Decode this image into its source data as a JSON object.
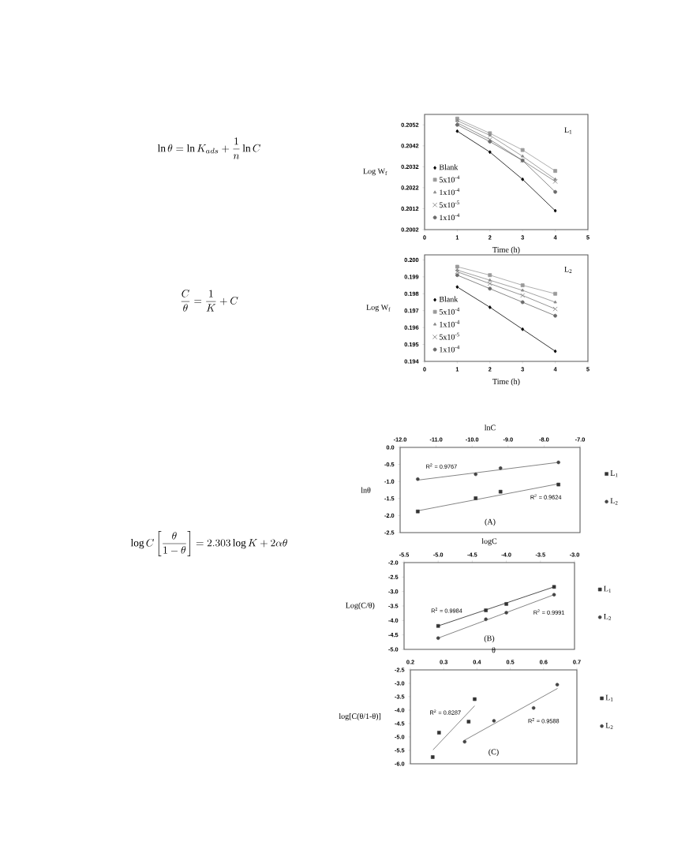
{
  "chart_data": [
    {
      "type": "other",
      "annotations": [
        "\\ln\\theta = \\ln K_{ads} + \\frac{1}{n}\\ln C",
        "\\frac{C}{\\theta} = \\frac{1}{K} + C",
        "\\log C\\left[\\frac{\\theta}{1-\\theta}\\right] = 2.303\\log K + 2\\alpha\\theta"
      ]
    },
    {
      "type": "line",
      "title": "L$_{1}$",
      "xlabel": "Time (h)",
      "ylabel": "Log W$_{f}$",
      "x": [
        1,
        2,
        3,
        4
      ],
      "xlim": [
        0,
        5
      ],
      "xticks": [
        0,
        1,
        2,
        3,
        4,
        5
      ],
      "ylim": [
        0.2002,
        0.2057
      ],
      "yticks": [
        0.2002,
        0.2012,
        0.2022,
        0.2032,
        0.2042,
        0.2052
      ],
      "legend": "bottom left",
      "series": [
        {
          "name": "Blank",
          "color": "#000000",
          "marker": "diamond",
          "values": [
            0.2049,
            0.2039,
            0.2026,
            0.2011
          ]
        },
        {
          "name": "5x10$^{-4}$",
          "color": "#9a9a9a",
          "marker": "square",
          "values": [
            0.2055,
            0.2048,
            0.204,
            0.203
          ]
        },
        {
          "name": "1x10$^{-4}$",
          "color": "#8a8a8a",
          "marker": "triangle",
          "values": [
            0.2054,
            0.2047,
            0.2037,
            0.2026
          ]
        },
        {
          "name": "5x10$^{-5}$",
          "color": "#7a7a7a",
          "marker": "cross",
          "values": [
            0.2053,
            0.2045,
            0.2035,
            0.2025
          ]
        },
        {
          "name": "1x10$^{-4}$",
          "color": "#6a6a6a",
          "marker": "circle",
          "values": [
            0.2052,
            0.2044,
            0.2035,
            0.202
          ]
        }
      ]
    },
    {
      "type": "line",
      "title": "L$_{2}$",
      "xlabel": "Time (h)",
      "ylabel": "Log W$_{f}$",
      "x": [
        1,
        2,
        3,
        4
      ],
      "xlim": [
        0,
        5
      ],
      "xticks": [
        0,
        1,
        2,
        3,
        4,
        5
      ],
      "ylim": [
        0.194,
        0.2003
      ],
      "yticks": [
        0.194,
        0.195,
        0.196,
        0.197,
        0.198,
        0.199,
        {
          "value": 0.2,
          "label": "0.200"
        }
      ],
      "legend": "bottom left",
      "series": [
        {
          "name": "Blank",
          "color": "#000000",
          "marker": "diamond",
          "values": [
            0.1984,
            0.1972,
            0.1959,
            0.1946
          ]
        },
        {
          "name": "5x10$^{-4}$",
          "color": "#9a9a9a",
          "marker": "square",
          "values": [
            0.1996,
            0.1991,
            0.1985,
            0.198
          ]
        },
        {
          "name": "1x10$^{-4}$",
          "color": "#8a8a8a",
          "marker": "triangle",
          "values": [
            0.1994,
            0.1988,
            0.1982,
            0.1975
          ]
        },
        {
          "name": "5x10$^{-5}$",
          "color": "#7a7a7a",
          "marker": "cross",
          "values": [
            0.1993,
            0.1986,
            0.1979,
            0.1971
          ]
        },
        {
          "name": "1x10$^{-4}$",
          "color": "#6a6a6a",
          "marker": "circle",
          "values": [
            0.1991,
            0.1983,
            0.1975,
            0.1967
          ]
        }
      ]
    },
    {
      "type": "scatter",
      "xlabel": "lnC",
      "ylabel": "lnθ",
      "x": [
        -11.51,
        -9.9,
        -9.21,
        -7.6
      ],
      "xlim": [
        -12,
        -7
      ],
      "xticks": [
        {
          "value": -12,
          "label": "-12.0"
        },
        {
          "value": -11,
          "label": "-11.0"
        },
        {
          "value": -10,
          "label": "-10.0"
        },
        {
          "value": -9,
          "label": "-9.0"
        },
        {
          "value": -8,
          "label": "-8.0"
        },
        {
          "value": -7,
          "label": "-7.0"
        }
      ],
      "ylim": [
        -2.5,
        0
      ],
      "yticks": [
        -2.5,
        {
          "value": -2,
          "label": "-2.0"
        },
        -1.5,
        {
          "value": -1,
          "label": "-1.0"
        },
        -0.5,
        {
          "value": 0,
          "label": "0.0"
        }
      ],
      "legend": "right",
      "series": [
        {
          "name": "L$_{1}$",
          "color": "#333333",
          "marker": "square",
          "values": [
            -1.88,
            -1.49,
            -1.3,
            -1.09
          ]
        },
        {
          "name": "L$_{2}$",
          "color": "#444444",
          "marker": "circle",
          "values": [
            -0.93,
            -0.79,
            -0.61,
            -0.44
          ]
        },
        {
          "type": "line",
          "color": "#666666",
          "x": [
            -11.51,
            -7.6
          ],
          "values": [
            -1.86,
            -1.07
          ]
        },
        {
          "type": "line",
          "color": "#666666",
          "x": [
            -11.51,
            -7.6
          ],
          "values": [
            -0.96,
            -0.44
          ]
        }
      ],
      "annotations": [
        "R$^{2}$ = 0.9767",
        "R$^{2}$ = 0.9624",
        "(A)"
      ]
    },
    {
      "type": "scatter",
      "xlabel": "logC",
      "ylabel": "Log(C/θ)",
      "x": [
        -5.0,
        -4.3,
        -4.0,
        -3.3
      ],
      "xlim": [
        -5.5,
        -3
      ],
      "xticks": [
        -5.5,
        {
          "value": -5,
          "label": "-5.0"
        },
        -4.5,
        {
          "value": -4,
          "label": "-4.0"
        },
        -3.5,
        {
          "value": -3,
          "label": "-3.0"
        }
      ],
      "ylim": [
        -5,
        -2
      ],
      "yticks": [
        {
          "value": -5,
          "label": "-5.0"
        },
        -4.5,
        {
          "value": -4,
          "label": "-4.0"
        },
        -3.5,
        {
          "value": -3,
          "label": "-3.0"
        },
        -2.5,
        {
          "value": -2,
          "label": "-2.0"
        }
      ],
      "legend": "right",
      "series": [
        {
          "name": "L$_{1}$",
          "color": "#333333",
          "marker": "square",
          "values": [
            -4.19,
            -3.65,
            -3.43,
            -2.84
          ]
        },
        {
          "name": "L$_{2}$",
          "color": "#444444",
          "marker": "circle",
          "values": [
            -4.61,
            -3.96,
            -3.73,
            -3.11
          ]
        },
        {
          "type": "line",
          "color": "#222222",
          "x": [
            -5.0,
            -3.3
          ],
          "values": [
            -4.19,
            -2.84
          ]
        },
        {
          "type": "line",
          "color": "#666666",
          "x": [
            -5.0,
            -3.3
          ],
          "values": [
            -4.61,
            -3.11
          ]
        }
      ],
      "annotations": [
        "R$^{2}$ = 0.9984",
        "R$^{2}$ = 0.9991",
        "(B)"
      ]
    },
    {
      "type": "scatter",
      "xlabel": "θ",
      "ylabel": "log[C(θ/1-θ)]",
      "xlim": [
        0.2,
        0.7
      ],
      "xticks": [
        0.2,
        0.3,
        0.4,
        0.5,
        0.6,
        0.7
      ],
      "ylim": [
        -6,
        -2.5
      ],
      "yticks": [
        {
          "value": -6,
          "label": "-6.0"
        },
        -5.5,
        {
          "value": -5,
          "label": "-5.0"
        },
        -4.5,
        {
          "value": -4,
          "label": "-4.0"
        },
        -3.5,
        {
          "value": -3,
          "label": "-3.0"
        },
        -2.5
      ],
      "legend": "right",
      "series": [
        {
          "name": "L$_{1}$",
          "color": "#333333",
          "marker": "square",
          "x": [
            0.267,
            0.286,
            0.375,
            0.393
          ],
          "values": [
            -5.75,
            -4.84,
            -4.43,
            -3.59
          ]
        },
        {
          "name": "L$_{2}$",
          "color": "#444444",
          "marker": "circle",
          "x": [
            0.363,
            0.451,
            0.57,
            0.641
          ],
          "values": [
            -5.18,
            -4.4,
            -3.92,
            -3.05
          ]
        },
        {
          "type": "line",
          "color": "#666666",
          "x": [
            0.268,
            0.393
          ],
          "values": [
            -5.48,
            -3.84
          ]
        },
        {
          "type": "line",
          "color": "#666666",
          "x": [
            0.363,
            0.642
          ],
          "values": [
            -5.12,
            -3.19
          ]
        }
      ],
      "annotations": [
        "R$^{2}$ = 0.8287",
        "R$^{2}$ = 0.9588",
        "(C)"
      ]
    }
  ]
}
